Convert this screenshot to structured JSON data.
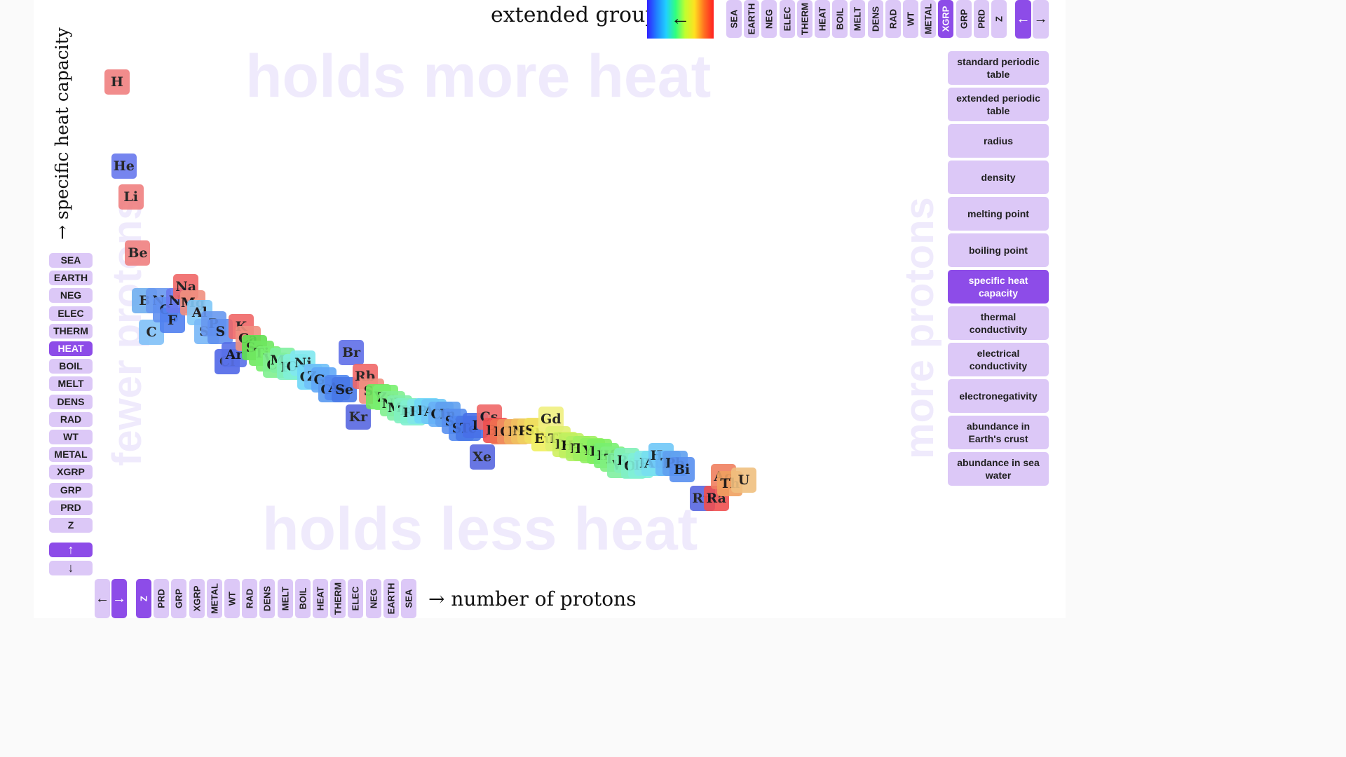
{
  "header": {
    "legend_label": "extended group",
    "legend_arrow": "←",
    "legend_colors": [
      "#3020ff",
      "#2080ff",
      "#20d0ff",
      "#30ff80",
      "#c0ff30",
      "#ffe020",
      "#ff7020",
      "#ff2020"
    ],
    "prop_buttons": [
      "SEA",
      "EARTH",
      "NEG",
      "ELEC",
      "THERM",
      "HEAT",
      "BOIL",
      "MELT",
      "DENS",
      "RAD",
      "WT",
      "METAL",
      "XGRP",
      "GRP",
      "PRD",
      "Z"
    ],
    "active_prop": "XGRP",
    "nav_left": "←",
    "nav_right": "→"
  },
  "y_axis": {
    "label": "→ specific heat capacity",
    "buttons": [
      "SEA",
      "EARTH",
      "NEG",
      "ELEC",
      "THERM",
      "HEAT",
      "BOIL",
      "MELT",
      "DENS",
      "RAD",
      "WT",
      "METAL",
      "XGRP",
      "GRP",
      "PRD",
      "Z"
    ],
    "active": "HEAT",
    "nav_up": "↑",
    "nav_down": "↓"
  },
  "x_axis": {
    "label": "→ number of protons",
    "buttons": [
      "Z",
      "PRD",
      "GRP",
      "XGRP",
      "METAL",
      "WT",
      "RAD",
      "DENS",
      "MELT",
      "BOIL",
      "HEAT",
      "THERM",
      "ELEC",
      "NEG",
      "EARTH",
      "SEA"
    ],
    "active": "Z",
    "nav_left": "←",
    "nav_right": "→"
  },
  "watermarks": {
    "top": "holds more heat",
    "bottom": "holds less heat",
    "left": "fewer protons",
    "right": "more protons"
  },
  "views": {
    "items": [
      "standard periodic table",
      "extended periodic table",
      "radius",
      "density",
      "melting point",
      "boiling point",
      "specific heat capacity",
      "thermal conductivity",
      "electrical conductivity",
      "electronegativity",
      "abundance in Earth's crust",
      "abundance in sea water"
    ],
    "active": "specific heat capacity"
  },
  "colors": {
    "accent": "#8d4ce8",
    "button": "#dcc8f7",
    "watermark": "#efeafc"
  },
  "chart_data": {
    "type": "scatter",
    "xlabel": "→ number of protons",
    "ylabel": "→ specific heat capacity",
    "xlim": [
      1,
      92
    ],
    "ylim": [
      0,
      1
    ],
    "color_by": "extended group",
    "points": [
      {
        "s": "H",
        "x": 1,
        "y": 0.962,
        "c": "#f08080"
      },
      {
        "s": "He",
        "x": 2,
        "y": 0.79,
        "c": "#6878ee"
      },
      {
        "s": "Li",
        "x": 3,
        "y": 0.727,
        "c": "#f08080"
      },
      {
        "s": "Be",
        "x": 4,
        "y": 0.613,
        "c": "#f08080"
      },
      {
        "s": "B",
        "x": 5,
        "y": 0.516,
        "c": "#70b0f0"
      },
      {
        "s": "C",
        "x": 6,
        "y": 0.451,
        "c": "#80c0f8"
      },
      {
        "s": "N",
        "x": 7,
        "y": 0.516,
        "c": "#6898f0"
      },
      {
        "s": "O",
        "x": 8,
        "y": 0.497,
        "c": "#6090f0"
      },
      {
        "s": "F",
        "x": 9,
        "y": 0.476,
        "c": "#5080f0"
      },
      {
        "s": "Ne",
        "x": 10,
        "y": 0.516,
        "c": "#6878ee"
      },
      {
        "s": "Na",
        "x": 11,
        "y": 0.544,
        "c": "#f06868"
      },
      {
        "s": "Mg",
        "x": 12,
        "y": 0.511,
        "c": "#f09080"
      },
      {
        "s": "Al",
        "x": 13,
        "y": 0.492,
        "c": "#80c8f8"
      },
      {
        "s": "Si",
        "x": 14,
        "y": 0.453,
        "c": "#78b8f8"
      },
      {
        "s": "P",
        "x": 15,
        "y": 0.469,
        "c": "#6898f0"
      },
      {
        "s": "S",
        "x": 16,
        "y": 0.453,
        "c": "#6090f0"
      },
      {
        "s": "Cl",
        "x": 17,
        "y": 0.391,
        "c": "#5068e8"
      },
      {
        "s": "Ar",
        "x": 18,
        "y": 0.406,
        "c": "#5870e8"
      },
      {
        "s": "K",
        "x": 19,
        "y": 0.463,
        "c": "#f06868"
      },
      {
        "s": "Ca",
        "x": 20,
        "y": 0.439,
        "c": "#f09080"
      },
      {
        "s": "Sc",
        "x": 21,
        "y": 0.42,
        "c": "#60e050"
      },
      {
        "s": "Ti",
        "x": 22,
        "y": 0.408,
        "c": "#70e860"
      },
      {
        "s": "V",
        "x": 23,
        "y": 0.397,
        "c": "#78f070"
      },
      {
        "s": "Cr",
        "x": 24,
        "y": 0.385,
        "c": "#80f090"
      },
      {
        "s": "Mn",
        "x": 25,
        "y": 0.395,
        "c": "#80f0a0"
      },
      {
        "s": "Fe",
        "x": 26,
        "y": 0.38,
        "c": "#80f0c0"
      },
      {
        "s": "Co",
        "x": 27,
        "y": 0.382,
        "c": "#80f0d8"
      },
      {
        "s": "Ni",
        "x": 28,
        "y": 0.388,
        "c": "#80e8f0"
      },
      {
        "s": "Cu",
        "x": 29,
        "y": 0.36,
        "c": "#70d8f8"
      },
      {
        "s": "Zn",
        "x": 30,
        "y": 0.362,
        "c": "#70c0f8"
      },
      {
        "s": "Ga",
        "x": 31,
        "y": 0.355,
        "c": "#60a8f8"
      },
      {
        "s": "Ge",
        "x": 32,
        "y": 0.334,
        "c": "#5898f0"
      },
      {
        "s": "As",
        "x": 33,
        "y": 0.338,
        "c": "#5088f0"
      },
      {
        "s": "Se",
        "x": 34,
        "y": 0.334,
        "c": "#4878e8"
      },
      {
        "s": "Br",
        "x": 35,
        "y": 0.41,
        "c": "#6070e8"
      },
      {
        "s": "Kr",
        "x": 36,
        "y": 0.278,
        "c": "#5868e0"
      },
      {
        "s": "Rb",
        "x": 37,
        "y": 0.361,
        "c": "#f06868"
      },
      {
        "s": "Sr",
        "x": 38,
        "y": 0.332,
        "c": "#f09080"
      },
      {
        "s": "Y",
        "x": 39,
        "y": 0.32,
        "c": "#70e860"
      },
      {
        "s": "Zr",
        "x": 40,
        "y": 0.318,
        "c": "#78f070"
      },
      {
        "s": "Nb",
        "x": 41,
        "y": 0.306,
        "c": "#80f090"
      },
      {
        "s": "Mo",
        "x": 42,
        "y": 0.297,
        "c": "#80f0a8"
      },
      {
        "s": "Tc",
        "x": 43,
        "y": 0.292,
        "c": "#80f0c0"
      },
      {
        "s": "Ru",
        "x": 44,
        "y": 0.287,
        "c": "#80f0d0"
      },
      {
        "s": "Rh",
        "x": 45,
        "y": 0.29,
        "c": "#80e8e8"
      },
      {
        "s": "Pd",
        "x": 46,
        "y": 0.292,
        "c": "#70d8f8"
      },
      {
        "s": "Ag",
        "x": 47,
        "y": 0.29,
        "c": "#70c8f8"
      },
      {
        "s": "Cd",
        "x": 48,
        "y": 0.285,
        "c": "#68b0f8"
      },
      {
        "s": "In",
        "x": 49,
        "y": 0.284,
        "c": "#60a0f0"
      },
      {
        "s": "Sn",
        "x": 50,
        "y": 0.27,
        "c": "#5890f0"
      },
      {
        "s": "Sb",
        "x": 51,
        "y": 0.256,
        "c": "#5088f0"
      },
      {
        "s": "Te",
        "x": 52,
        "y": 0.256,
        "c": "#4878e8"
      },
      {
        "s": "I",
        "x": 53,
        "y": 0.262,
        "c": "#4870e8"
      },
      {
        "s": "Xe",
        "x": 54,
        "y": 0.197,
        "c": "#5868e0"
      },
      {
        "s": "Cs",
        "x": 55,
        "y": 0.278,
        "c": "#f06868"
      },
      {
        "s": "Ba",
        "x": 56,
        "y": 0.252,
        "c": "#f05050"
      },
      {
        "s": "La",
        "x": 57,
        "y": 0.248,
        "c": "#f07050"
      },
      {
        "s": "Ce",
        "x": 58,
        "y": 0.249,
        "c": "#f09060"
      },
      {
        "s": "Pr",
        "x": 59,
        "y": 0.248,
        "c": "#f0b060"
      },
      {
        "s": "Nd",
        "x": 60,
        "y": 0.25,
        "c": "#f0c060"
      },
      {
        "s": "Pm",
        "x": 61,
        "y": 0.25,
        "c": "#f0d060"
      },
      {
        "s": "Sm",
        "x": 62,
        "y": 0.252,
        "c": "#f0e060"
      },
      {
        "s": "Eu",
        "x": 63,
        "y": 0.234,
        "c": "#f0f060"
      },
      {
        "s": "Gd",
        "x": 64,
        "y": 0.275,
        "c": "#f0f080"
      },
      {
        "s": "Tb",
        "x": 65,
        "y": 0.234,
        "c": "#e0f070"
      },
      {
        "s": "Dy",
        "x": 66,
        "y": 0.223,
        "c": "#d0f060"
      },
      {
        "s": "Ho",
        "x": 67,
        "y": 0.22,
        "c": "#c0f060"
      },
      {
        "s": "Er",
        "x": 68,
        "y": 0.214,
        "c": "#b0f060"
      },
      {
        "s": "Tm",
        "x": 69,
        "y": 0.214,
        "c": "#a0f060"
      },
      {
        "s": "Yb",
        "x": 70,
        "y": 0.21,
        "c": "#90f060"
      },
      {
        "s": "Lu",
        "x": 71,
        "y": 0.208,
        "c": "#80f060"
      },
      {
        "s": "Hf",
        "x": 72,
        "y": 0.2,
        "c": "#78f070"
      },
      {
        "s": "Ta",
        "x": 73,
        "y": 0.193,
        "c": "#80f080"
      },
      {
        "s": "W",
        "x": 74,
        "y": 0.18,
        "c": "#80f0a0"
      },
      {
        "s": "Re",
        "x": 75,
        "y": 0.19,
        "c": "#80f0b8"
      },
      {
        "s": "Os",
        "x": 76,
        "y": 0.178,
        "c": "#80f0c8"
      },
      {
        "s": "Ir",
        "x": 77,
        "y": 0.18,
        "c": "#80f0d8"
      },
      {
        "s": "Pt",
        "x": 78,
        "y": 0.184,
        "c": "#80e8e8"
      },
      {
        "s": "Au",
        "x": 79,
        "y": 0.184,
        "c": "#78e0f0"
      },
      {
        "s": "Hg",
        "x": 80,
        "y": 0.2,
        "c": "#70c8f8"
      },
      {
        "s": "Tl",
        "x": 81,
        "y": 0.184,
        "c": "#68b8f8"
      },
      {
        "s": "Pb",
        "x": 82,
        "y": 0.184,
        "c": "#60a0f0"
      },
      {
        "s": "Bi",
        "x": 83,
        "y": 0.172,
        "c": "#5890f0"
      },
      {
        "s": "Rn",
        "x": 86,
        "y": 0.113,
        "c": "#5868e0"
      },
      {
        "s": "Ra",
        "x": 88,
        "y": 0.113,
        "c": "#f05050"
      },
      {
        "s": "Ac",
        "x": 89,
        "y": 0.157,
        "c": "#f08060"
      },
      {
        "s": "Th",
        "x": 90,
        "y": 0.143,
        "c": "#f0a060"
      },
      {
        "s": "U",
        "x": 92,
        "y": 0.15,
        "c": "#f0c080"
      }
    ]
  }
}
